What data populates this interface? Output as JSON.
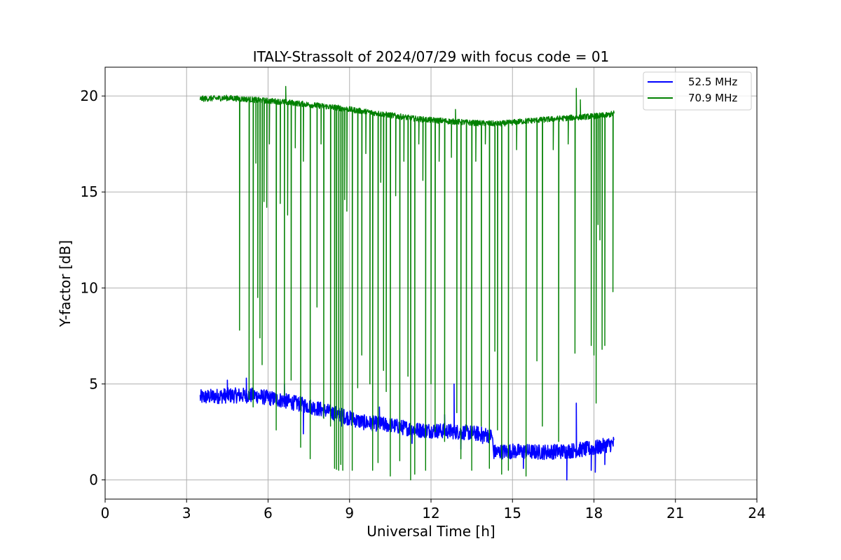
{
  "chart_data": {
    "type": "line",
    "title": "ITALY-Strassolt of 2024/07/29 with focus code = 01",
    "xlabel": "Universal Time [h]",
    "ylabel": "Y-factor [dB]",
    "xlim": [
      0,
      24
    ],
    "ylim": [
      -1,
      21.5
    ],
    "xticks": [
      0,
      3,
      6,
      9,
      12,
      15,
      18,
      21,
      24
    ],
    "yticks": [
      0,
      5,
      10,
      15,
      20
    ],
    "xtick_labels": [
      "0",
      "3",
      "6",
      "9",
      "12",
      "15",
      "18",
      "21",
      "24"
    ],
    "ytick_labels": [
      "0",
      "5",
      "10",
      "15",
      "20"
    ],
    "grid": true,
    "legend_position": "top-right",
    "series": [
      {
        "name": "52.5 MHz",
        "color": "#0000ff",
        "baseline": {
          "x": [
            3.5,
            4.5,
            5.5,
            6.5,
            7.5,
            8.5,
            9.5,
            10.5,
            11.5,
            12.5,
            13.5,
            14.25,
            14.3,
            15.0,
            16.0,
            17.0,
            18.0,
            18.75
          ],
          "y": [
            4.3,
            4.4,
            4.4,
            4.15,
            3.85,
            3.45,
            3.0,
            2.85,
            2.6,
            2.55,
            2.45,
            2.3,
            1.45,
            1.5,
            1.45,
            1.5,
            1.65,
            1.9
          ]
        },
        "noise_amplitude": 0.4,
        "spikes": [
          {
            "x": 4.5,
            "y": 5.2
          },
          {
            "x": 5.2,
            "y": 5.3
          },
          {
            "x": 6.6,
            "y": 5.0
          },
          {
            "x": 7.3,
            "y": 2.4
          },
          {
            "x": 8.7,
            "y": 2.8
          },
          {
            "x": 10.1,
            "y": 3.8
          },
          {
            "x": 11.3,
            "y": 1.9
          },
          {
            "x": 12.5,
            "y": 3.4
          },
          {
            "x": 12.85,
            "y": 5.0
          },
          {
            "x": 13.1,
            "y": 1.6
          },
          {
            "x": 13.9,
            "y": 1.9
          },
          {
            "x": 15.4,
            "y": 0.6
          },
          {
            "x": 17.0,
            "y": 0.0
          },
          {
            "x": 17.35,
            "y": 4.0
          },
          {
            "x": 17.9,
            "y": 0.5
          },
          {
            "x": 18.05,
            "y": 0.4
          },
          {
            "x": 18.4,
            "y": 0.8
          }
        ]
      },
      {
        "name": "70.9 MHz",
        "color": "#008000",
        "baseline": {
          "x": [
            3.5,
            4.5,
            5.5,
            6.5,
            7.5,
            8.5,
            9.5,
            10.5,
            11.5,
            12.5,
            13.5,
            14.5,
            15.5,
            16.5,
            17.5,
            18.5,
            18.75
          ],
          "y": [
            19.85,
            19.9,
            19.8,
            19.7,
            19.55,
            19.4,
            19.2,
            19.0,
            18.8,
            18.7,
            18.6,
            18.55,
            18.7,
            18.8,
            18.9,
            19.0,
            19.1
          ]
        },
        "noise_amplitude": 0.15,
        "spikes": [
          {
            "x": 6.65,
            "y": 20.5
          },
          {
            "x": 17.35,
            "y": 20.4
          },
          {
            "x": 12.9,
            "y": 19.3
          },
          {
            "x": 17.5,
            "y": 19.8
          }
        ],
        "dropouts": [
          {
            "x": 4.95,
            "y": 7.8
          },
          {
            "x": 5.3,
            "y": 4.2
          },
          {
            "x": 5.45,
            "y": 3.8
          },
          {
            "x": 5.55,
            "y": 16.5
          },
          {
            "x": 5.62,
            "y": 9.5
          },
          {
            "x": 5.7,
            "y": 7.4
          },
          {
            "x": 5.78,
            "y": 6.0
          },
          {
            "x": 5.85,
            "y": 14.5
          },
          {
            "x": 5.95,
            "y": 14.2
          },
          {
            "x": 6.05,
            "y": 17.5
          },
          {
            "x": 6.3,
            "y": 2.6
          },
          {
            "x": 6.45,
            "y": 14.4
          },
          {
            "x": 6.6,
            "y": 4.4
          },
          {
            "x": 6.72,
            "y": 13.8
          },
          {
            "x": 6.85,
            "y": 5.2
          },
          {
            "x": 7.0,
            "y": 17.3
          },
          {
            "x": 7.2,
            "y": 1.7
          },
          {
            "x": 7.3,
            "y": 16.6
          },
          {
            "x": 7.55,
            "y": 1.1
          },
          {
            "x": 7.8,
            "y": 9.0
          },
          {
            "x": 7.95,
            "y": 17.5
          },
          {
            "x": 8.05,
            "y": 3.2
          },
          {
            "x": 8.3,
            "y": 2.8
          },
          {
            "x": 8.45,
            "y": 0.6
          },
          {
            "x": 8.52,
            "y": 0.55
          },
          {
            "x": 8.6,
            "y": 0.5
          },
          {
            "x": 8.68,
            "y": 0.8
          },
          {
            "x": 8.75,
            "y": 0.5
          },
          {
            "x": 8.82,
            "y": 14.6
          },
          {
            "x": 8.9,
            "y": 14.0
          },
          {
            "x": 9.1,
            "y": 0.5
          },
          {
            "x": 9.3,
            "y": 4.8
          },
          {
            "x": 9.45,
            "y": 6.5
          },
          {
            "x": 9.6,
            "y": 17.0
          },
          {
            "x": 9.75,
            "y": 5.0
          },
          {
            "x": 9.85,
            "y": 0.5
          },
          {
            "x": 10.05,
            "y": 0.9
          },
          {
            "x": 10.15,
            "y": 15.5
          },
          {
            "x": 10.25,
            "y": 5.7
          },
          {
            "x": 10.35,
            "y": 4.6
          },
          {
            "x": 10.5,
            "y": 0.2
          },
          {
            "x": 10.7,
            "y": 14.8
          },
          {
            "x": 10.85,
            "y": 1.0
          },
          {
            "x": 11.0,
            "y": 16.6
          },
          {
            "x": 11.15,
            "y": 5.4
          },
          {
            "x": 11.25,
            "y": 0.0
          },
          {
            "x": 11.4,
            "y": 0.3
          },
          {
            "x": 11.55,
            "y": 17.5
          },
          {
            "x": 11.7,
            "y": 15.6
          },
          {
            "x": 11.8,
            "y": 0.5
          },
          {
            "x": 12.0,
            "y": 5.0
          },
          {
            "x": 12.15,
            "y": 2.5
          },
          {
            "x": 12.3,
            "y": 16.6
          },
          {
            "x": 12.5,
            "y": 2.0
          },
          {
            "x": 12.75,
            "y": 16.8
          },
          {
            "x": 12.95,
            "y": 3.5
          },
          {
            "x": 13.1,
            "y": 1.1
          },
          {
            "x": 13.3,
            "y": 2.6
          },
          {
            "x": 13.5,
            "y": 0.5
          },
          {
            "x": 13.65,
            "y": 16.6
          },
          {
            "x": 13.85,
            "y": 2.8
          },
          {
            "x": 14.0,
            "y": 17.5
          },
          {
            "x": 14.15,
            "y": 0.6
          },
          {
            "x": 14.35,
            "y": 6.7
          },
          {
            "x": 14.45,
            "y": 2.6
          },
          {
            "x": 14.6,
            "y": 0.3
          },
          {
            "x": 14.85,
            "y": 0.5
          },
          {
            "x": 15.15,
            "y": 17.2
          },
          {
            "x": 15.5,
            "y": 0.2
          },
          {
            "x": 15.9,
            "y": 6.2
          },
          {
            "x": 16.1,
            "y": 2.8
          },
          {
            "x": 16.5,
            "y": 17.2
          },
          {
            "x": 16.7,
            "y": 2.0
          },
          {
            "x": 17.05,
            "y": 17.5
          },
          {
            "x": 17.3,
            "y": 6.6
          },
          {
            "x": 17.9,
            "y": 7.0
          },
          {
            "x": 18.0,
            "y": 6.5
          },
          {
            "x": 18.08,
            "y": 4.0
          },
          {
            "x": 18.15,
            "y": 13.3
          },
          {
            "x": 18.22,
            "y": 12.5
          },
          {
            "x": 18.3,
            "y": 6.8
          },
          {
            "x": 18.4,
            "y": 7.0
          },
          {
            "x": 18.7,
            "y": 9.8
          }
        ]
      }
    ]
  }
}
